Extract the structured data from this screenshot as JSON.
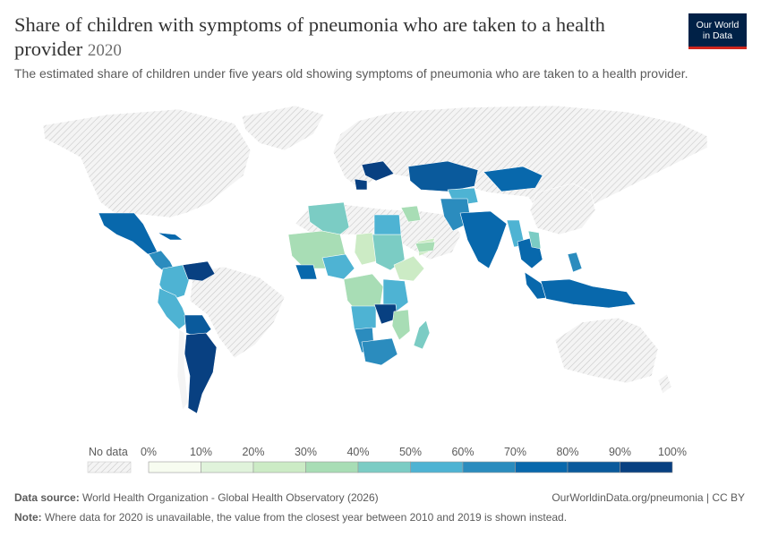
{
  "header": {
    "title": "Share of children with symptoms of pneumonia who are taken to a health provider",
    "year": "2020",
    "subtitle": "The estimated share of children under five years old showing symptoms of pneumonia who are taken to a health provider."
  },
  "logo": {
    "line1": "Our World",
    "line2": "in Data"
  },
  "legend": {
    "no_data_label": "No data",
    "ticks": [
      "0%",
      "10%",
      "20%",
      "30%",
      "40%",
      "50%",
      "60%",
      "70%",
      "80%",
      "90%",
      "100%"
    ],
    "colors": [
      "#f7fcf0",
      "#e0f3db",
      "#ccebc5",
      "#a8ddb5",
      "#7bccc4",
      "#4eb3d3",
      "#2b8cbe",
      "#0868ac",
      "#0a5a9c",
      "#084081"
    ]
  },
  "footer": {
    "source_label": "Data source:",
    "source_text": "World Health Organization - Global Health Observatory (2026)",
    "url": "OurWorldinData.org/pneumonia | CC BY",
    "note_label": "Note:",
    "note_text": "Where data for 2020 is unavailable, the value from the closest year between 2010 and 2019 is shown instead."
  }
}
